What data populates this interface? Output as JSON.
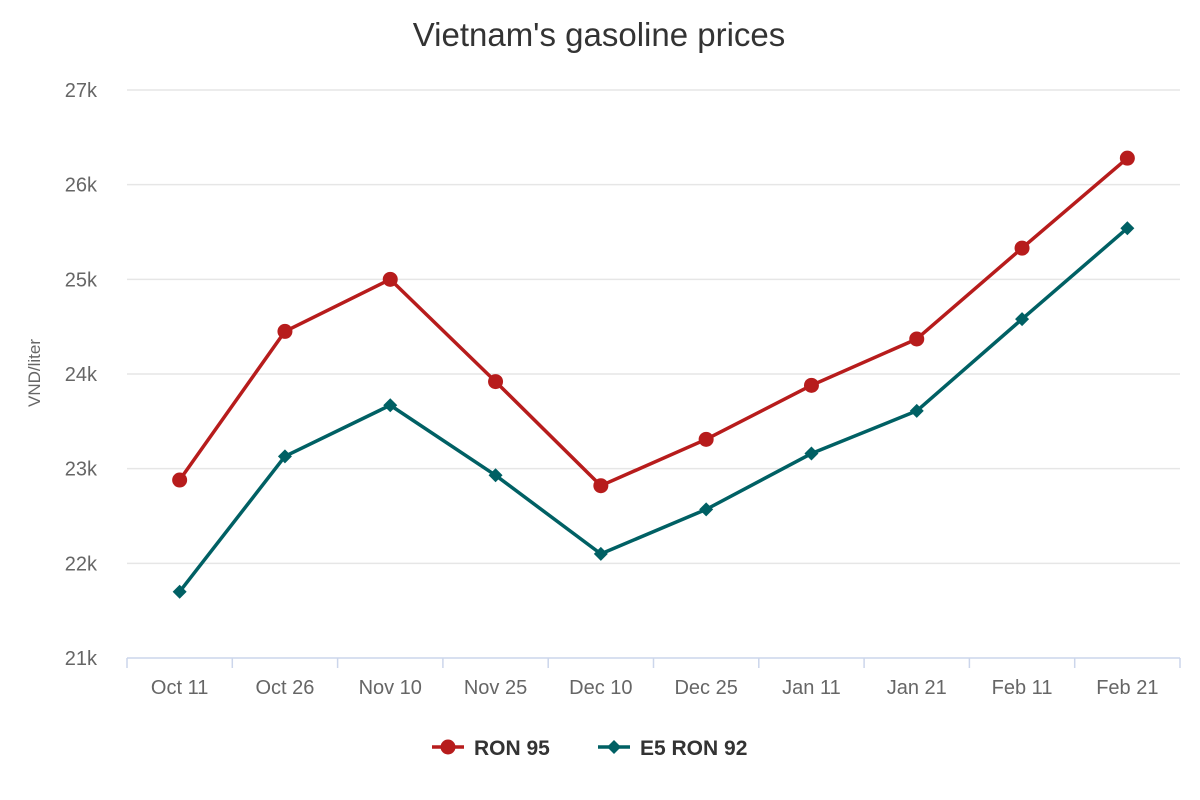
{
  "chart_data": {
    "type": "line",
    "title": "Vietnam's gasoline prices",
    "ylabel": "VND/liter",
    "xlabel": "",
    "categories": [
      "Oct 11",
      "Oct 26",
      "Nov 10",
      "Nov 25",
      "Dec 10",
      "Dec 25",
      "Jan 11",
      "Jan 21",
      "Feb 11",
      "Feb 21"
    ],
    "ylim": [
      21000,
      27000
    ],
    "yticks": [
      21000,
      22000,
      23000,
      24000,
      25000,
      26000,
      27000
    ],
    "ytick_labels": [
      "21k",
      "22k",
      "23k",
      "24k",
      "25k",
      "26k",
      "27k"
    ],
    "grid": true,
    "legend_position": "bottom",
    "series": [
      {
        "name": "RON 95",
        "color": "#b71c1c",
        "marker": "circle",
        "values": [
          22880,
          24450,
          25000,
          23920,
          22820,
          23310,
          23880,
          24370,
          25330,
          26280
        ]
      },
      {
        "name": "E5 RON 92",
        "color": "#006064",
        "marker": "diamond",
        "values": [
          21700,
          23130,
          23670,
          22930,
          22100,
          22570,
          23160,
          23610,
          24580,
          25540
        ]
      }
    ]
  }
}
